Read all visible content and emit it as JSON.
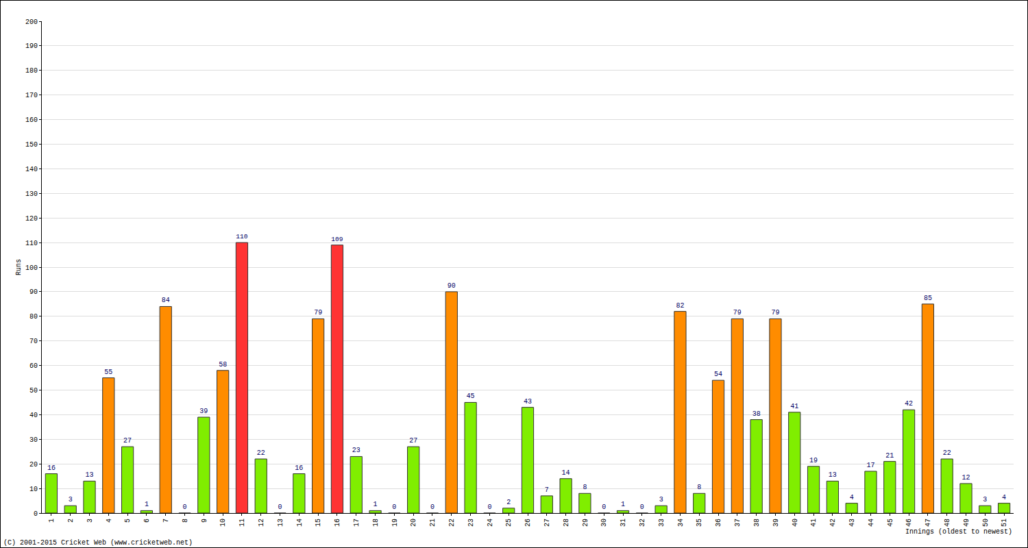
{
  "chart_data": {
    "type": "bar",
    "x_label": "Innings (oldest to newest)",
    "y_label": "Runs",
    "annotations": [
      {
        "text": "(C) 2001-2015 Cricket Web (www.cricketweb.net)"
      }
    ],
    "categories": [
      "1",
      "2",
      "3",
      "4",
      "5",
      "6",
      "7",
      "8",
      "9",
      "10",
      "11",
      "12",
      "13",
      "14",
      "15",
      "16",
      "17",
      "18",
      "19",
      "20",
      "21",
      "22",
      "23",
      "24",
      "25",
      "26",
      "27",
      "28",
      "29",
      "30",
      "31",
      "32",
      "33",
      "34",
      "35",
      "36",
      "37",
      "38",
      "39",
      "40",
      "41",
      "42",
      "43",
      "44",
      "45",
      "46",
      "47",
      "48",
      "49",
      "50",
      "51"
    ],
    "values": [
      16,
      3,
      13,
      55,
      27,
      1,
      84,
      0,
      39,
      58,
      110,
      22,
      0,
      16,
      79,
      109,
      23,
      1,
      0,
      27,
      0,
      90,
      45,
      0,
      2,
      43,
      7,
      14,
      8,
      0,
      1,
      0,
      3,
      82,
      8,
      54,
      79,
      38,
      79,
      41,
      19,
      13,
      4,
      17,
      21,
      42,
      85,
      22,
      12,
      3,
      4
    ],
    "colors": [
      "#80ee00",
      "#80ee00",
      "#80ee00",
      "#ff8c00",
      "#80ee00",
      "#80ee00",
      "#ff8c00",
      "#80ee00",
      "#80ee00",
      "#ff8c00",
      "#ff3333",
      "#80ee00",
      "#80ee00",
      "#80ee00",
      "#ff8c00",
      "#ff3333",
      "#80ee00",
      "#80ee00",
      "#80ee00",
      "#80ee00",
      "#80ee00",
      "#ff8c00",
      "#80ee00",
      "#80ee00",
      "#80ee00",
      "#80ee00",
      "#80ee00",
      "#80ee00",
      "#80ee00",
      "#80ee00",
      "#80ee00",
      "#80ee00",
      "#80ee00",
      "#ff8c00",
      "#80ee00",
      "#ff8c00",
      "#ff8c00",
      "#80ee00",
      "#ff8c00",
      "#80ee00",
      "#80ee00",
      "#80ee00",
      "#80ee00",
      "#80ee00",
      "#80ee00",
      "#80ee00",
      "#ff8c00",
      "#80ee00",
      "#80ee00",
      "#80ee00",
      "#80ee00"
    ],
    "ylim": [
      0,
      200
    ],
    "yticks": [
      0,
      10,
      20,
      30,
      40,
      50,
      60,
      70,
      80,
      90,
      100,
      110,
      120,
      130,
      140,
      150,
      160,
      170,
      180,
      190,
      200
    ],
    "grid": true,
    "data_labels": true
  }
}
